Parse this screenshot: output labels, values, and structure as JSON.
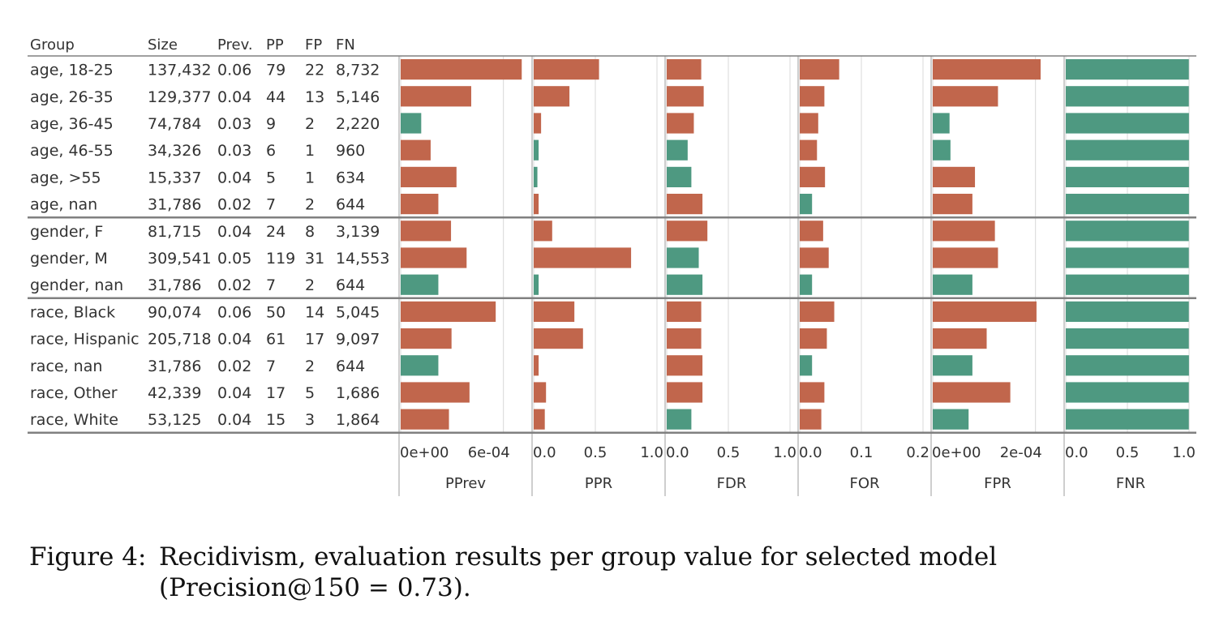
{
  "table": {
    "columns": [
      "Group",
      "Size",
      "Prev.",
      "PP",
      "FP",
      "FN"
    ],
    "rows": [
      [
        "age, 18-25",
        "137,432",
        "0.06",
        "79",
        "22",
        "8,732"
      ],
      [
        "age, 26-35",
        "129,377",
        "0.04",
        "44",
        "13",
        "5,146"
      ],
      [
        "age, 36-45",
        "74,784",
        "0.03",
        "9",
        "2",
        "2,220"
      ],
      [
        "age, 46-55",
        "34,326",
        "0.03",
        "6",
        "1",
        "960"
      ],
      [
        "age, >55",
        "15,337",
        "0.04",
        "5",
        "1",
        "634"
      ],
      [
        "age, nan",
        "31,786",
        "0.02",
        "7",
        "2",
        "644"
      ],
      [
        "gender, F",
        "81,715",
        "0.04",
        "24",
        "8",
        "3,139"
      ],
      [
        "gender, M",
        "309,541",
        "0.05",
        "119",
        "31",
        "14,553"
      ],
      [
        "gender, nan",
        "31,786",
        "0.02",
        "7",
        "2",
        "644"
      ],
      [
        "race, Black",
        "90,074",
        "0.06",
        "50",
        "14",
        "5,045"
      ],
      [
        "race, Hispanic",
        "205,718",
        "0.04",
        "61",
        "17",
        "9,097"
      ],
      [
        "race, nan",
        "31,786",
        "0.02",
        "7",
        "2",
        "644"
      ],
      [
        "race, Other",
        "42,339",
        "0.04",
        "17",
        "5",
        "1,686"
      ],
      [
        "race, White",
        "53,125",
        "0.04",
        "15",
        "3",
        "1,864"
      ]
    ]
  },
  "colors": {
    "above": "#c1664c",
    "below": "#4e9981",
    "grid": "#d8d8d8",
    "rule": "#808080"
  },
  "chart_data": {
    "type": "bar",
    "categories": [
      "age, 18-25",
      "age, 26-35",
      "age, 36-45",
      "age, 46-55",
      "age, >55",
      "age, nan",
      "gender, F",
      "gender, M",
      "gender, nan",
      "race, Black",
      "race, Hispanic",
      "race, nan",
      "race, Other",
      "race, White"
    ],
    "groups": [
      {
        "name": "age",
        "rows": 6
      },
      {
        "name": "gender",
        "rows": 3
      },
      {
        "name": "race",
        "rows": 5
      }
    ],
    "panels": [
      {
        "name": "PPrev",
        "xlim": [
          0,
          0.00072
        ],
        "ticks": [
          0,
          0.0006
        ],
        "tick_labels": [
          "0e+00",
          "6e-04"
        ],
        "values": [
          0.000707,
          0.000412,
          0.00012,
          0.000175,
          0.000326,
          0.00022,
          0.000294,
          0.000385,
          0.00022,
          0.000555,
          0.000297,
          0.00022,
          0.000402,
          0.000282
        ],
        "color": [
          "above",
          "above",
          "below",
          "above",
          "above",
          "above",
          "above",
          "above",
          "below",
          "above",
          "above",
          "below",
          "above",
          "above"
        ]
      },
      {
        "name": "PPR",
        "xlim": [
          0,
          1.0
        ],
        "ticks": [
          0,
          0.5,
          1.0
        ],
        "tick_labels": [
          "0.0",
          "0.5",
          "1.0"
        ],
        "values": [
          0.53,
          0.29,
          0.06,
          0.04,
          0.03,
          0.04,
          0.15,
          0.79,
          0.04,
          0.33,
          0.4,
          0.04,
          0.1,
          0.09
        ],
        "color": [
          "above",
          "above",
          "above",
          "below",
          "below",
          "above",
          "above",
          "above",
          "below",
          "above",
          "above",
          "above",
          "above",
          "above"
        ]
      },
      {
        "name": "FDR",
        "xlim": [
          0,
          1.0
        ],
        "ticks": [
          0,
          0.5,
          1.0
        ],
        "tick_labels": [
          "0.0",
          "0.5",
          "1.0"
        ],
        "values": [
          0.28,
          0.3,
          0.22,
          0.17,
          0.2,
          0.29,
          0.33,
          0.26,
          0.29,
          0.28,
          0.28,
          0.29,
          0.29,
          0.2
        ],
        "color": [
          "above",
          "above",
          "above",
          "below",
          "below",
          "above",
          "above",
          "below",
          "below",
          "above",
          "above",
          "above",
          "above",
          "below"
        ]
      },
      {
        "name": "FOR",
        "xlim": [
          0,
          0.2
        ],
        "ticks": [
          0,
          0.1,
          0.2
        ],
        "tick_labels": [
          "0.0",
          "0.1",
          "0.2"
        ],
        "values": [
          0.064,
          0.04,
          0.03,
          0.028,
          0.041,
          0.02,
          0.038,
          0.047,
          0.02,
          0.056,
          0.044,
          0.02,
          0.04,
          0.035
        ],
        "color": [
          "above",
          "above",
          "above",
          "above",
          "above",
          "below",
          "above",
          "above",
          "below",
          "above",
          "above",
          "below",
          "above",
          "above"
        ]
      },
      {
        "name": "FPR",
        "xlim": [
          0,
          0.00024
        ],
        "ticks": [
          0,
          0.0002
        ],
        "tick_labels": [
          "0e+00",
          "2e-04"
        ],
        "values": [
          0.00021,
          0.000127,
          3.27e-05,
          3.45e-05,
          8.22e-05,
          7.72e-05,
          0.000121,
          0.000127,
          7.72e-05,
          0.000202,
          0.000105,
          7.72e-05,
          0.000151,
          6.98e-05
        ],
        "color": [
          "above",
          "above",
          "below",
          "below",
          "above",
          "above",
          "above",
          "above",
          "below",
          "above",
          "above",
          "below",
          "above",
          "below"
        ]
      },
      {
        "name": "FNR",
        "xlim": [
          0,
          1.0
        ],
        "ticks": [
          0,
          0.5,
          1.0
        ],
        "tick_labels": [
          "0.0",
          "0.5",
          "1.0"
        ],
        "values": [
          0.998,
          0.998,
          0.999,
          0.999,
          0.999,
          0.999,
          0.998,
          0.998,
          0.999,
          0.998,
          0.998,
          0.999,
          0.998,
          0.998
        ],
        "color": [
          "below",
          "below",
          "below",
          "below",
          "below",
          "below",
          "below",
          "below",
          "below",
          "below",
          "below",
          "below",
          "below",
          "below"
        ]
      }
    ]
  },
  "caption": {
    "label": "Figure 4:",
    "text": "Recidivism, evaluation results per group value for selected model (Precision@150 = 0.73)."
  }
}
